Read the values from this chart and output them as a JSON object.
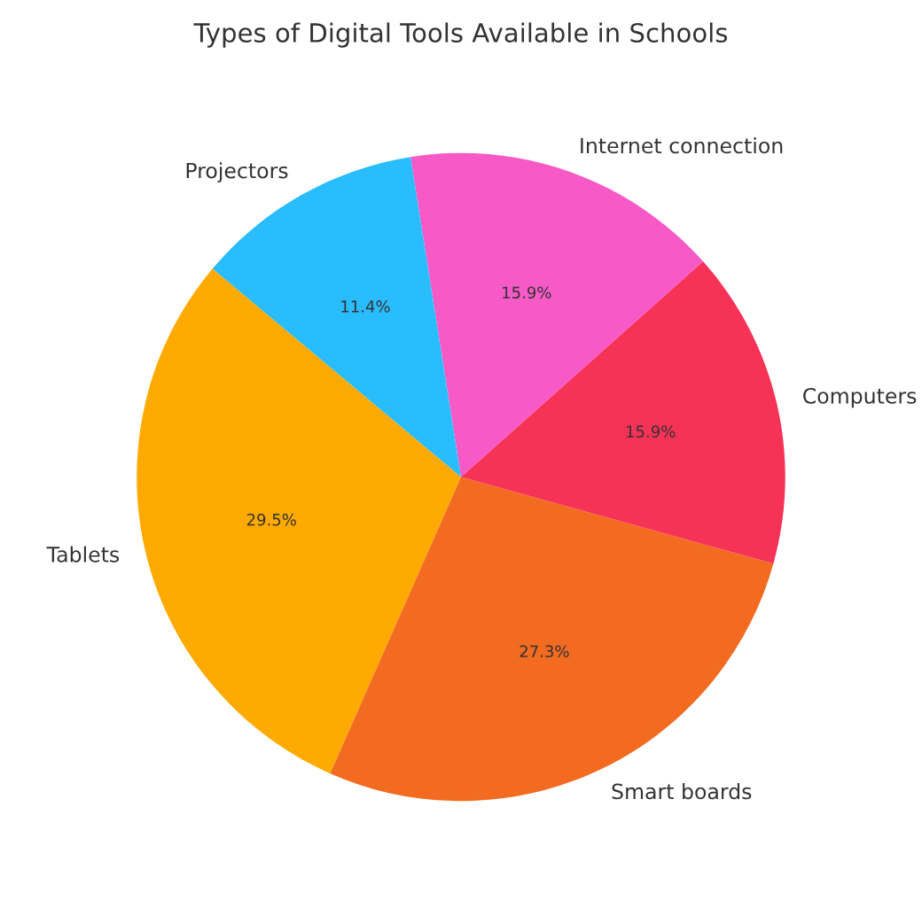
{
  "chart_data": {
    "type": "pie",
    "title": "Types of Digital Tools Available in Schools",
    "categories": [
      "Tablets",
      "Smart boards",
      "Computers",
      "Internet connection",
      "Projectors"
    ],
    "values": [
      29.5,
      27.3,
      15.9,
      15.9,
      11.4
    ],
    "value_labels": [
      "29.5%",
      "27.3%",
      "15.9%",
      "15.9%",
      "11.4%"
    ],
    "colors": [
      "#ffaa00",
      "#f26b21",
      "#f73257",
      "#f75ac7",
      "#29bdfd"
    ]
  }
}
